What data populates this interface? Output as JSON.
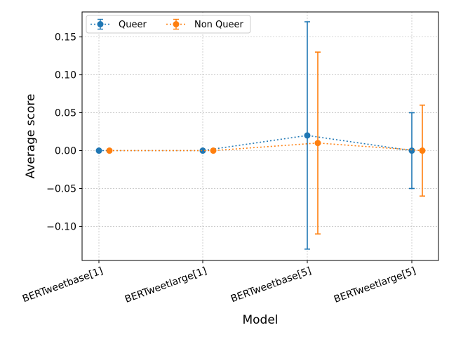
{
  "chart_data": {
    "type": "scatter",
    "title": "",
    "xlabel": "Model",
    "ylabel": "Average score",
    "categories": [
      "BERTweetbase[1]",
      "BERTweetlarge[1]",
      "BERTweetbase[5]",
      "BERTweetlarge[5]"
    ],
    "ylim": [
      -0.145,
      0.183
    ],
    "yticks": [
      -0.1,
      -0.05,
      0.0,
      0.05,
      0.1,
      0.15
    ],
    "ytick_labels": [
      "−0.10",
      "−0.05",
      "0.00",
      "0.05",
      "0.10",
      "0.15"
    ],
    "grid": true,
    "legend_position": "top-left",
    "series": [
      {
        "name": "Queer",
        "color": "#1f77b4",
        "line_style": "dotted",
        "marker": "circle",
        "values": [
          0.0,
          0.0,
          0.02,
          0.0
        ],
        "error_low": [
          0.0,
          0.0,
          -0.13,
          -0.05
        ],
        "error_high": [
          0.0,
          0.0,
          0.17,
          0.05
        ]
      },
      {
        "name": "Non Queer",
        "color": "#ff7f0e",
        "line_style": "dotted",
        "marker": "circle",
        "values": [
          0.0,
          0.0,
          0.01,
          0.0
        ],
        "error_low": [
          0.0,
          0.0,
          -0.11,
          -0.06
        ],
        "error_high": [
          0.0,
          0.0,
          0.13,
          0.06
        ]
      }
    ]
  }
}
